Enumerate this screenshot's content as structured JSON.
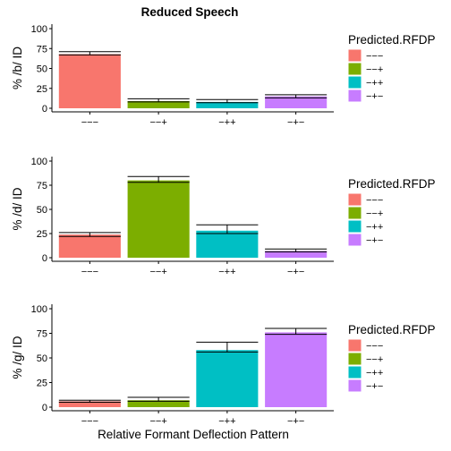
{
  "figure": {
    "title": "Reduced Speech",
    "xlabel": "Relative Formant Deflection Pattern"
  },
  "legend": {
    "title": "Predicted.RFDP",
    "placement": "right",
    "items": [
      {
        "label": "−−−",
        "color": "#F8766D"
      },
      {
        "label": "−−+",
        "color": "#7CAE00"
      },
      {
        "label": "−++",
        "color": "#00BFC4"
      },
      {
        "label": "−+−",
        "color": "#C77CFF"
      }
    ]
  },
  "chart_data": [
    {
      "type": "bar",
      "ylabel": "% /b/ ID",
      "categories": [
        "−−−",
        "−−+",
        "−++",
        "−+−"
      ],
      "values": [
        68,
        9,
        8,
        15
      ],
      "error_low": [
        67,
        8,
        7,
        13
      ],
      "error_high": [
        71,
        12,
        11,
        17
      ],
      "ylim": [
        0,
        100
      ],
      "yticks": [
        0,
        25,
        50,
        75,
        100
      ],
      "grid": false
    },
    {
      "type": "bar",
      "ylabel": "% /d/ ID",
      "categories": [
        "−−−",
        "−−+",
        "−++",
        "−+−"
      ],
      "values": [
        24,
        80,
        28,
        7
      ],
      "error_low": [
        22,
        78,
        25,
        6
      ],
      "error_high": [
        26,
        84,
        34,
        9
      ],
      "ylim": [
        0,
        100
      ],
      "yticks": [
        0,
        25,
        50,
        75,
        100
      ],
      "grid": false
    },
    {
      "type": "bar",
      "ylabel": "% /g/ ID",
      "categories": [
        "−−−",
        "−−+",
        "−++",
        "−+−"
      ],
      "values": [
        6,
        7,
        58,
        76
      ],
      "error_low": [
        5,
        6,
        56,
        74
      ],
      "error_high": [
        7,
        10,
        66,
        80
      ],
      "ylim": [
        0,
        100
      ],
      "yticks": [
        0,
        25,
        50,
        75,
        100
      ],
      "grid": false
    }
  ]
}
